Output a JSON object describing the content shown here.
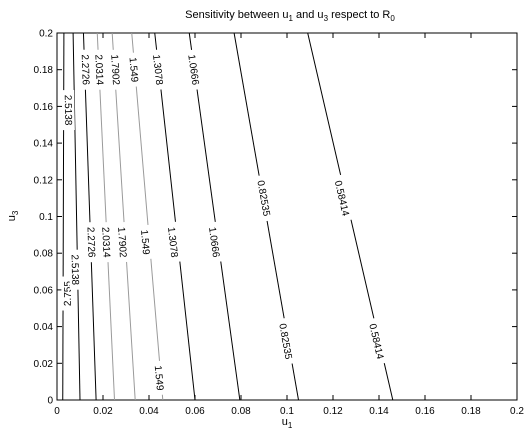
{
  "chart_data": {
    "type": "contour",
    "title": {
      "text": "Sensitivity between u",
      "sub1": "1",
      "mid": " and u",
      "sub2": "3",
      "tail": " respect to R",
      "sub3": "0"
    },
    "xlabel": {
      "base": "u",
      "sub": "1"
    },
    "ylabel": {
      "base": "u",
      "sub": "3"
    },
    "xlim": [
      0,
      0.2
    ],
    "ylim": [
      0,
      0.2
    ],
    "x_ticks": [
      "0",
      "0.02",
      "0.04",
      "0.06",
      "0.08",
      "0.1",
      "0.12",
      "0.14",
      "0.16",
      "0.18",
      "0.2"
    ],
    "y_ticks": [
      "0",
      "0.02",
      "0.04",
      "0.06",
      "0.08",
      "0.1",
      "0.12",
      "0.14",
      "0.16",
      "0.18",
      "0.2"
    ],
    "grid": false,
    "colors": {
      "dark_line": "#000000",
      "light_line": "#9a9a9a"
    },
    "levels": [
      {
        "level": "2.755",
        "x_bottom": 0.0025,
        "x_top": 0.003,
        "shade": "dark",
        "labels": [
          [
            0.0045,
            0.058
          ]
        ]
      },
      {
        "level": "2.5138",
        "x_bottom": 0.01,
        "x_top": 0.007,
        "shade": "dark",
        "labels": [
          [
            0.005,
            0.158
          ],
          [
            0.008,
            0.071
          ]
        ]
      },
      {
        "level": "2.2726",
        "x_bottom": 0.017,
        "x_top": 0.0115,
        "shade": "dark",
        "labels": [
          [
            0.0125,
            0.18
          ],
          [
            0.015,
            0.086
          ]
        ]
      },
      {
        "level": "2.0314",
        "x_bottom": 0.025,
        "x_top": 0.0175,
        "shade": "light",
        "labels": [
          [
            0.0185,
            0.18
          ],
          [
            0.0215,
            0.086
          ]
        ]
      },
      {
        "level": "1.7902",
        "x_bottom": 0.034,
        "x_top": 0.024,
        "shade": "light",
        "labels": [
          [
            0.0255,
            0.18
          ],
          [
            0.0285,
            0.086
          ]
        ]
      },
      {
        "level": "1.549",
        "x_bottom": 0.046,
        "x_top": 0.0325,
        "shade": "light",
        "labels": [
          [
            0.0335,
            0.18
          ],
          [
            0.0385,
            0.086
          ],
          [
            0.0445,
            0.012
          ]
        ]
      },
      {
        "level": "1.3078",
        "x_bottom": 0.06,
        "x_top": 0.0425,
        "shade": "dark",
        "labels": [
          [
            0.044,
            0.18
          ],
          [
            0.0505,
            0.086
          ]
        ]
      },
      {
        "level": "1.0666",
        "x_bottom": 0.0795,
        "x_top": 0.0575,
        "shade": "dark",
        "labels": [
          [
            0.0595,
            0.18
          ],
          [
            0.0685,
            0.086
          ]
        ]
      },
      {
        "level": "0.82535",
        "x_bottom": 0.105,
        "x_top": 0.077,
        "shade": "dark",
        "labels": [
          [
            0.09,
            0.11
          ],
          [
            0.0995,
            0.032
          ]
        ]
      },
      {
        "level": "0.58414",
        "x_bottom": 0.146,
        "x_top": 0.109,
        "shade": "dark",
        "labels": [
          [
            0.124,
            0.11
          ],
          [
            0.139,
            0.032
          ]
        ]
      }
    ]
  }
}
